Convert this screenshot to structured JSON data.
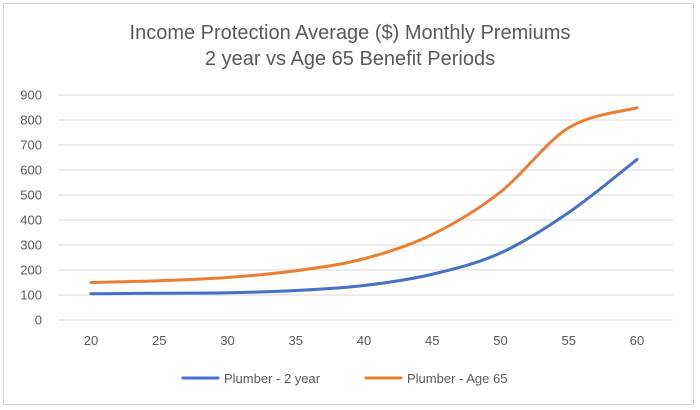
{
  "chart_data": {
    "type": "line",
    "title_line1": "Income Protection Average ($) Monthly Premiums",
    "title_line2": "2 year vs Age 65 Benefit Periods",
    "xlabel": "",
    "ylabel": "",
    "categories": [
      "20",
      "25",
      "30",
      "35",
      "40",
      "45",
      "50",
      "55",
      "60"
    ],
    "ylim": [
      0,
      900
    ],
    "yticks": [
      "0",
      "100",
      "200",
      "300",
      "400",
      "500",
      "600",
      "700",
      "800",
      "900"
    ],
    "grid": true,
    "legend_position": "bottom",
    "series": [
      {
        "name": "Plumber - 2 year",
        "color": "#4472c4",
        "values": [
          105,
          107,
          109,
          118,
          138,
          183,
          268,
          430,
          642
        ]
      },
      {
        "name": "Plumber - Age 65",
        "color": "#ed7d31",
        "values": [
          150,
          157,
          170,
          197,
          245,
          342,
          512,
          769,
          849
        ]
      }
    ]
  }
}
